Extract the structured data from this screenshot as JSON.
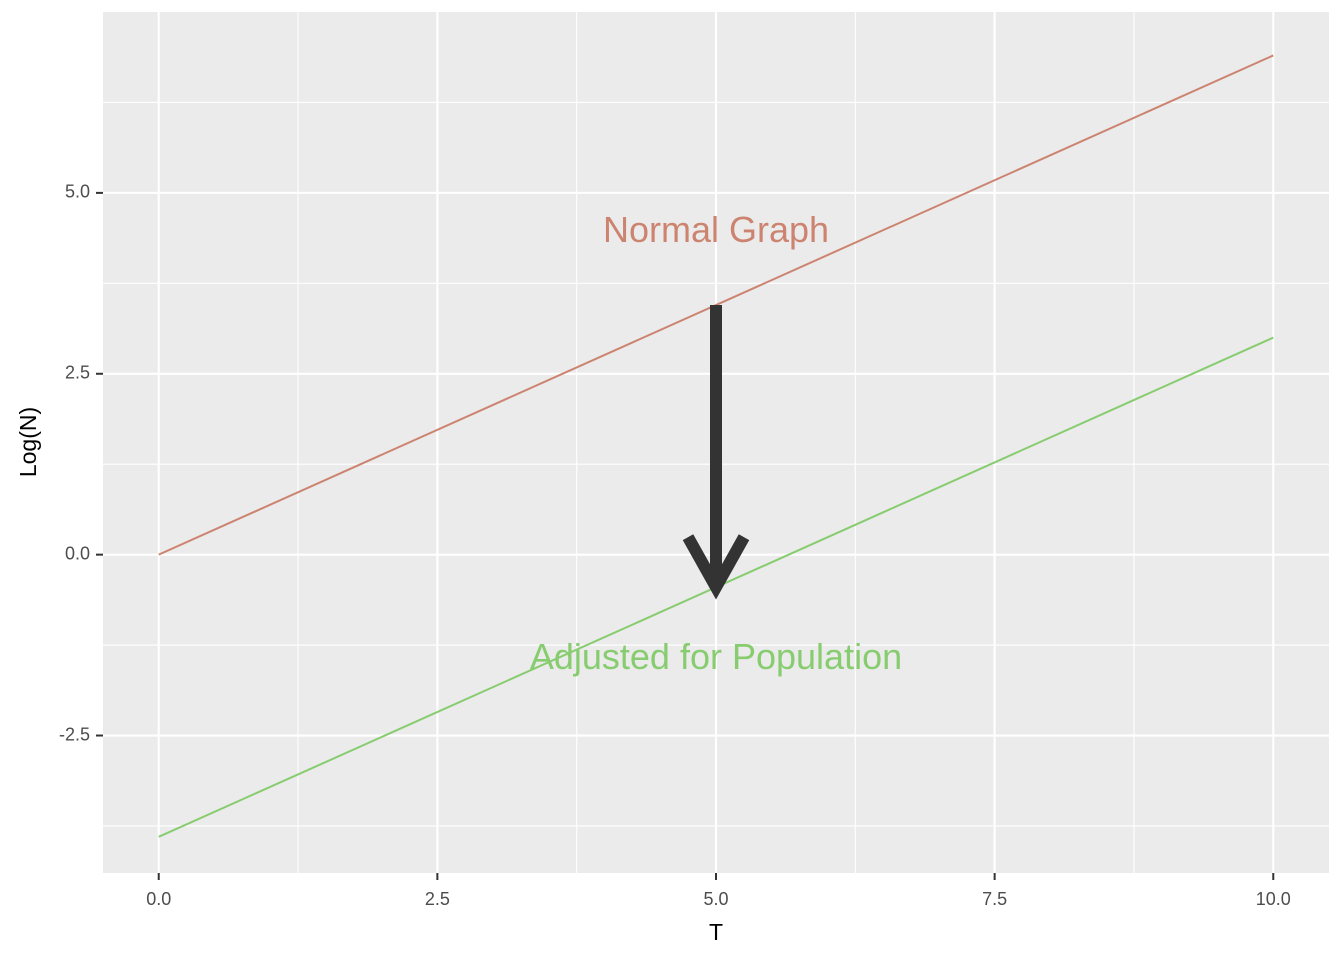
{
  "chart_data": {
    "type": "line",
    "title": "",
    "xlabel": "T",
    "ylabel": "Log(N)",
    "xlim": [
      -0.5,
      10.5
    ],
    "ylim": [
      -4.4,
      7.5
    ],
    "x_ticks": [
      0,
      2.5,
      5,
      7.5,
      10
    ],
    "x_tick_labels": [
      "0.0",
      "2.5",
      "5.0",
      "7.5",
      "10.0"
    ],
    "y_ticks": [
      -2.5,
      0,
      2.5,
      5
    ],
    "y_tick_labels": [
      "-2.5",
      "0.0",
      "2.5",
      "5.0"
    ],
    "grid": true,
    "background_color": "#ebebeb",
    "series": [
      {
        "x": [
          0,
          10
        ],
        "values": [
          0,
          6.9
        ],
        "color": "#cc8470"
      },
      {
        "x": [
          0,
          10
        ],
        "values": [
          -3.9,
          3.0
        ],
        "color": "#88cc70"
      }
    ],
    "annotations": [
      {
        "text": "Normal Graph",
        "x": 5,
        "y": 4.45,
        "color": "#cc8470"
      },
      {
        "text": "Adjusted for Population",
        "x": 5,
        "y": -1.45,
        "color": "#88cc70"
      }
    ],
    "arrow": {
      "x_start": 5,
      "y_start": 3.45,
      "x_end": 5,
      "y_end": -0.45,
      "color": "#333333"
    }
  }
}
